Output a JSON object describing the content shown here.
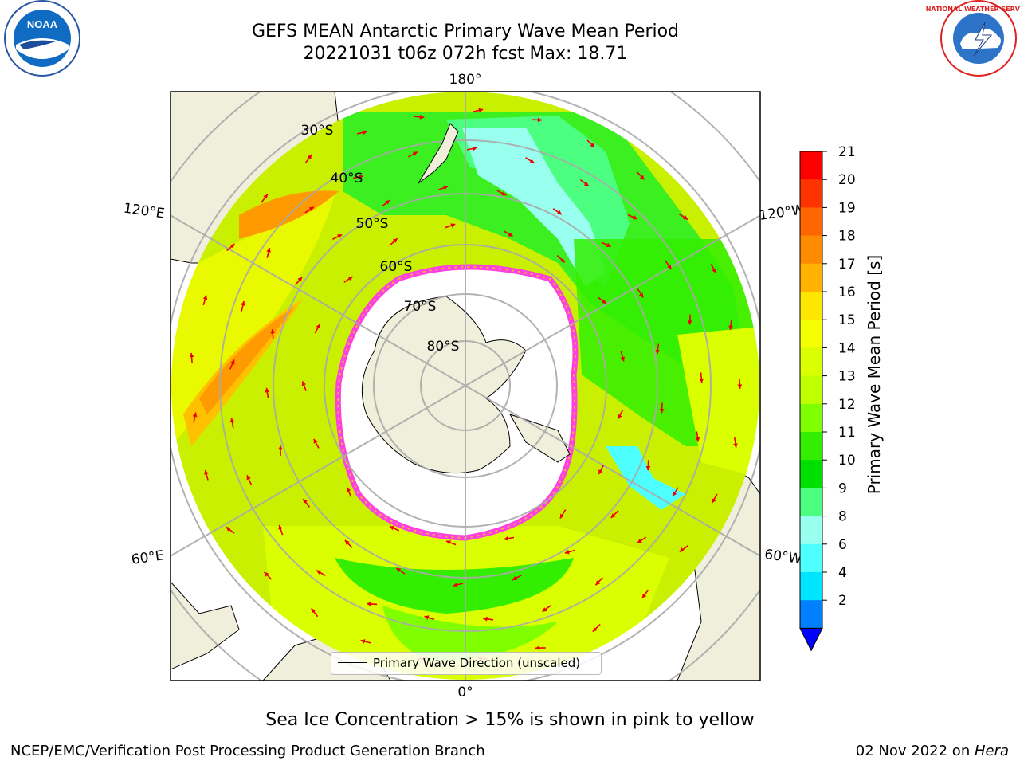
{
  "title_line1": "GEFS MEAN Antarctic Primary Wave Mean Period",
  "title_line2": "20221031 t06z 072h fcst   Max: 18.71",
  "logos": {
    "left": "NOAA",
    "right": "NATIONAL WEATHER SERVICE"
  },
  "map": {
    "projection": "south-polar-stereographic",
    "longitude_labels": {
      "top": "180°",
      "bottom": "0°",
      "left_upper": "120°E",
      "left_lower": "60°E",
      "right_upper": "120°W",
      "right_lower": "60°W"
    },
    "latitude_labels": [
      "30°S",
      "40°S",
      "50°S",
      "60°S",
      "70°S",
      "80°S"
    ],
    "legend": "Primary Wave Direction (unscaled)"
  },
  "colorbar": {
    "label": "Primary Wave Mean Period [s]",
    "ticks": [
      "21",
      "20",
      "19",
      "18",
      "17",
      "16",
      "15",
      "14",
      "13",
      "12",
      "11",
      "10",
      "9",
      "8",
      "6",
      "4",
      "2"
    ],
    "colors": [
      "#ff0000",
      "#ff3300",
      "#ff6600",
      "#ff8c00",
      "#ffb300",
      "#ffe600",
      "#f5ff00",
      "#d9ff00",
      "#bfff00",
      "#80ff00",
      "#33ee00",
      "#00e000",
      "#4dff80",
      "#99ffee",
      "#4dffff",
      "#00e5ff",
      "#0080ff"
    ],
    "extend_color": "#0000ff"
  },
  "note": "Sea Ice Concentration > 15% is shown in pink to yellow",
  "footer_left": "NCEP/EMC/Verification Post Processing Product Generation Branch",
  "footer_right_date": "02 Nov 2022 on ",
  "footer_right_host": "Hera"
}
